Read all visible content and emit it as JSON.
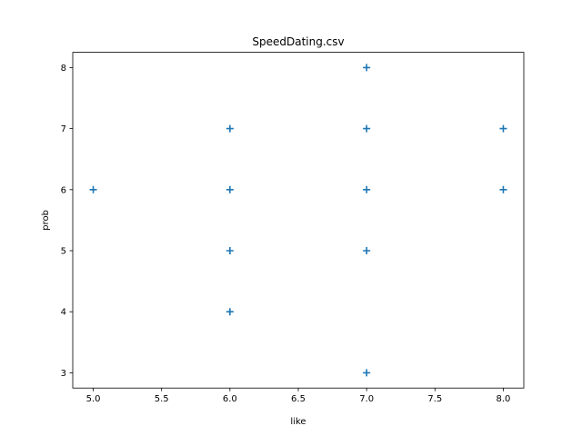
{
  "chart_data": {
    "type": "scatter",
    "title": "SpeedDating.csv",
    "xlabel": "like",
    "ylabel": "prob",
    "xlim": [
      4.85,
      8.15
    ],
    "ylim": [
      2.75,
      8.25
    ],
    "xticks": [
      "5.0",
      "5.5",
      "6.0",
      "6.5",
      "7.0",
      "7.5",
      "8.0"
    ],
    "yticks": [
      "3",
      "4",
      "5",
      "6",
      "7",
      "8"
    ],
    "marker": "+",
    "color": "#1f77b4",
    "grid": false,
    "points": [
      {
        "x": 5,
        "y": 6
      },
      {
        "x": 6,
        "y": 4
      },
      {
        "x": 6,
        "y": 5
      },
      {
        "x": 6,
        "y": 6
      },
      {
        "x": 6,
        "y": 7
      },
      {
        "x": 7,
        "y": 3
      },
      {
        "x": 7,
        "y": 5
      },
      {
        "x": 7,
        "y": 6
      },
      {
        "x": 7,
        "y": 7
      },
      {
        "x": 7,
        "y": 8
      },
      {
        "x": 8,
        "y": 6
      },
      {
        "x": 8,
        "y": 7
      }
    ]
  }
}
